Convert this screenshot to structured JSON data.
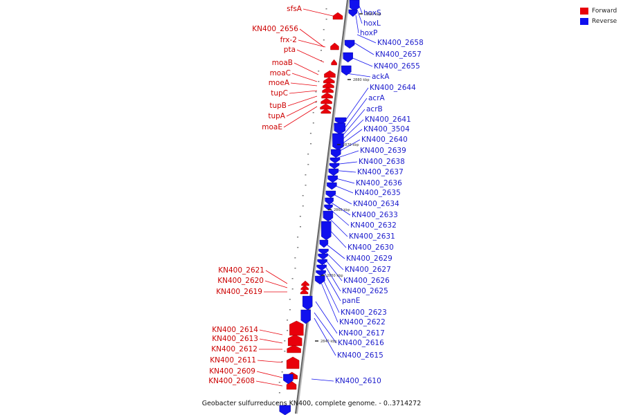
{
  "legend": {
    "forward_label": "Forward",
    "reverse_label": "Reverse",
    "forward_color": "#e8000b",
    "reverse_color": "#1010ee"
  },
  "caption": "Geobacter sulfurreducens KN400, complete genome. - 0..3714272",
  "ticks": [
    "2890 kbp",
    "2880 kbp",
    "2870 kbp",
    "2860 kbp",
    "2850 kbp",
    "2840 kbp"
  ],
  "forward_genes": [
    "sfsA",
    "KN400_2656",
    "frx-2",
    "pta",
    "moaB",
    "moaC",
    "moeA",
    "tupC",
    "tupB",
    "tupA",
    "moaE",
    "KN400_2621",
    "KN400_2620",
    "KN400_2619",
    "KN400_2614",
    "KN400_2613",
    "KN400_2612",
    "KN400_2611",
    "KN400_2609",
    "KN400_2608"
  ],
  "reverse_genes": [
    "hoxS",
    "hoxL",
    "hoxP",
    "KN400_2658",
    "KN400_2657",
    "KN400_2655",
    "ackA",
    "KN400_2644",
    "acrA",
    "acrB",
    "KN400_2641",
    "KN400_3504",
    "KN400_2640",
    "KN400_2639",
    "KN400_2638",
    "KN400_2637",
    "KN400_2636",
    "KN400_2635",
    "KN400_2634",
    "KN400_2633",
    "KN400_2632",
    "KN400_2631",
    "KN400_2630",
    "KN400_2629",
    "KN400_2627",
    "KN400_2626",
    "KN400_2625",
    "panE",
    "KN400_2623",
    "KN400_2622",
    "KN400_2617",
    "KN400_2616",
    "KN400_2615",
    "KN400_2610"
  ]
}
